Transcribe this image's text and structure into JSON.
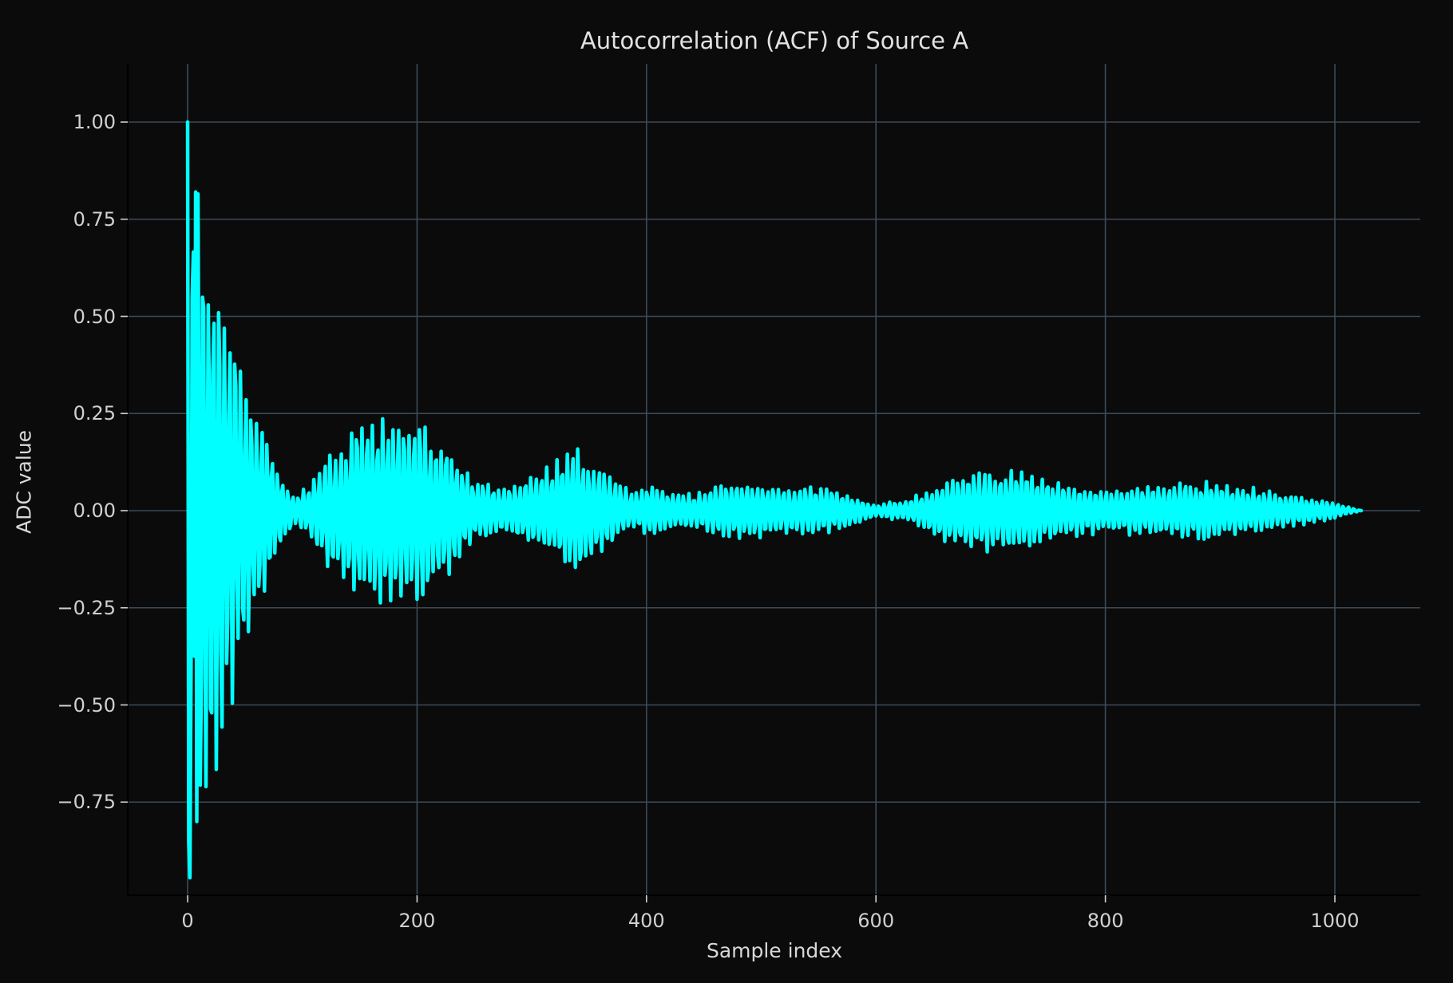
{
  "chart_data": {
    "type": "line",
    "title": "Autocorrelation (ACF) of Source A",
    "xlabel": "Sample index",
    "ylabel": "ADC value",
    "xlim": [
      -52,
      1073
    ],
    "ylim": [
      -0.99,
      1.15
    ],
    "grid": true,
    "legend": null,
    "xticks": [
      0,
      200,
      400,
      600,
      800,
      1000
    ],
    "xtick_labels": [
      "0",
      "200",
      "400",
      "600",
      "800",
      "1000"
    ],
    "yticks": [
      1.0,
      0.75,
      0.5,
      0.25,
      0.0,
      -0.25,
      -0.5,
      -0.75
    ],
    "ytick_labels": [
      "1.00",
      "0.75",
      "0.50",
      "0.25",
      "0.00",
      "−0.25",
      "−0.50",
      "−0.75"
    ],
    "series": [
      {
        "name": "ACF",
        "color": "#00ffff",
        "n_samples": 1024,
        "carrier_period_samples": 4.6,
        "description": "Oscillating autocorrelation; starts at 1.00 at lag 0, decays quickly, then shows beating envelope lobes",
        "envelope_points": [
          {
            "x": 0,
            "amp": 1.0
          },
          {
            "x": 5,
            "amp": 0.85
          },
          {
            "x": 20,
            "amp": 0.68
          },
          {
            "x": 40,
            "amp": 0.45
          },
          {
            "x": 60,
            "amp": 0.25
          },
          {
            "x": 80,
            "amp": 0.1
          },
          {
            "x": 95,
            "amp": 0.03
          },
          {
            "x": 120,
            "amp": 0.13
          },
          {
            "x": 150,
            "amp": 0.21
          },
          {
            "x": 190,
            "amp": 0.24
          },
          {
            "x": 220,
            "amp": 0.19
          },
          {
            "x": 250,
            "amp": 0.08
          },
          {
            "x": 275,
            "amp": 0.05
          },
          {
            "x": 310,
            "amp": 0.1
          },
          {
            "x": 340,
            "amp": 0.16
          },
          {
            "x": 365,
            "amp": 0.09
          },
          {
            "x": 385,
            "amp": 0.05
          },
          {
            "x": 405,
            "amp": 0.06
          },
          {
            "x": 440,
            "amp": 0.04
          },
          {
            "x": 475,
            "amp": 0.07
          },
          {
            "x": 520,
            "amp": 0.06
          },
          {
            "x": 560,
            "amp": 0.055
          },
          {
            "x": 600,
            "amp": 0.015
          },
          {
            "x": 630,
            "amp": 0.03
          },
          {
            "x": 680,
            "amp": 0.1
          },
          {
            "x": 720,
            "amp": 0.1
          },
          {
            "x": 760,
            "amp": 0.07
          },
          {
            "x": 800,
            "amp": 0.055
          },
          {
            "x": 840,
            "amp": 0.06
          },
          {
            "x": 880,
            "amp": 0.075
          },
          {
            "x": 920,
            "amp": 0.06
          },
          {
            "x": 960,
            "amp": 0.04
          },
          {
            "x": 1000,
            "amp": 0.02
          },
          {
            "x": 1023,
            "amp": 0.0
          }
        ],
        "notable_points": [
          {
            "x": 0,
            "y": 1.0
          },
          {
            "x": 1,
            "y": -0.85
          },
          {
            "x": 7,
            "y": 0.82
          },
          {
            "x": 8,
            "y": -0.8
          },
          {
            "x": 200,
            "y": 0.25
          },
          {
            "x": 200,
            "y": -0.24
          },
          {
            "x": 340,
            "y": 0.16
          },
          {
            "x": 340,
            "y": -0.16
          },
          {
            "x": 1023,
            "y": -0.01
          }
        ]
      }
    ]
  },
  "style": {
    "background": "#0b0b0b",
    "grid_color": "#3d4b58",
    "spine_color": "#000000",
    "text_color": "#d8d8d8",
    "line_color": "#00ffff"
  }
}
